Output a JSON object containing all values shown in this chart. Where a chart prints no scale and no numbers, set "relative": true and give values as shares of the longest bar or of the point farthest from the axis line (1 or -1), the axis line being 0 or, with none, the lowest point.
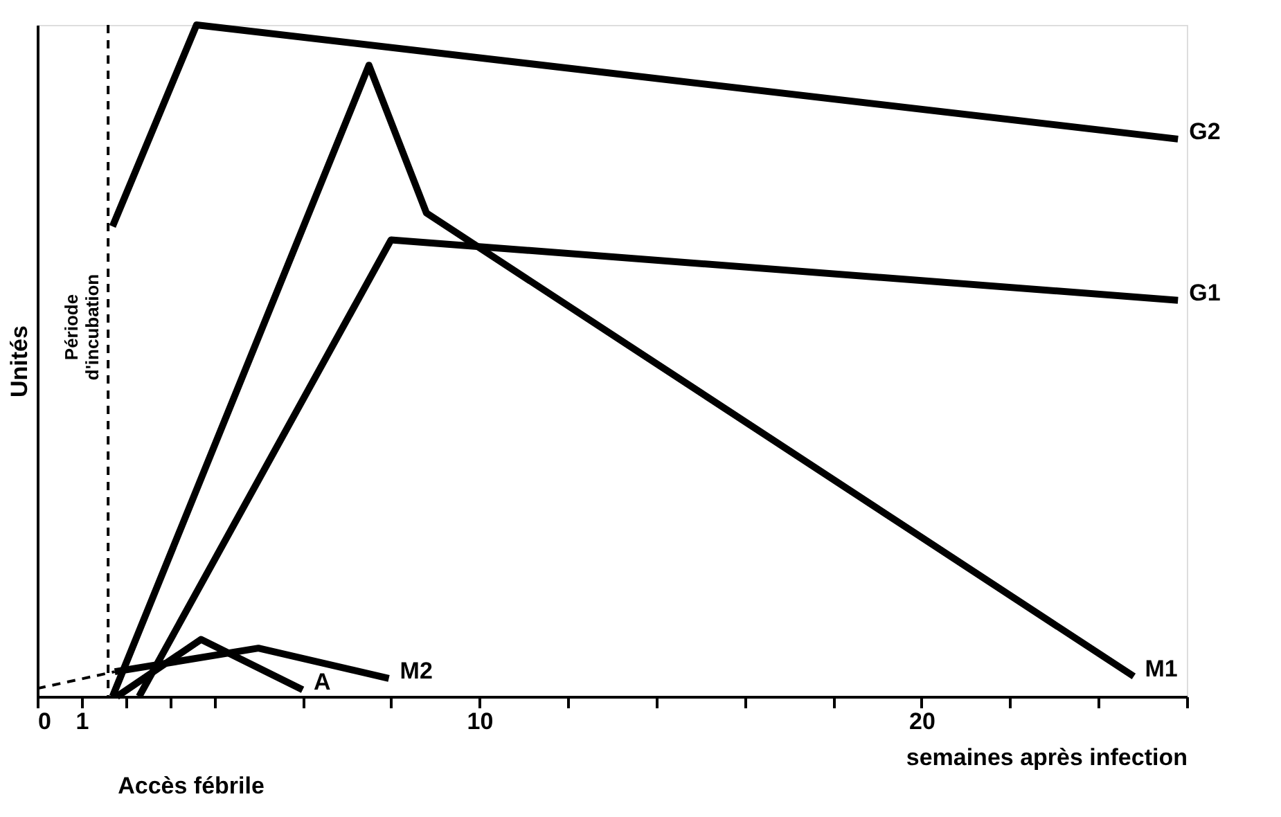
{
  "chart_data": {
    "type": "line",
    "xlabel": "semaines après infection",
    "ylabel": "Unités",
    "relative": true,
    "grid": false,
    "marker": "none",
    "xlim": [
      0,
      26
    ],
    "xticks": [
      0,
      1,
      {
        "value": 2,
        "label": null
      },
      {
        "value": 3,
        "label": null
      },
      {
        "value": 4,
        "label": null
      },
      {
        "value": 6,
        "label": null
      },
      {
        "value": 8,
        "label": null
      },
      10,
      {
        "value": 12,
        "label": null
      },
      {
        "value": 14,
        "label": null
      },
      {
        "value": 16,
        "label": null
      },
      {
        "value": 18,
        "label": null
      },
      20,
      {
        "value": 22,
        "label": null
      },
      {
        "value": 24,
        "label": null
      },
      {
        "value": 26,
        "label": null
      }
    ],
    "series": [
      {
        "name": "G2",
        "color": "#000000",
        "x": [
          1.7,
          3.6,
          25.8
        ],
        "values": [
          0.7,
          1.0,
          0.83
        ]
      },
      {
        "name": "G1",
        "color": "#000000",
        "x": [
          2.3,
          8.0,
          25.8
        ],
        "values": [
          0,
          0.68,
          0.59
        ]
      },
      {
        "name": "M1",
        "color": "#000000",
        "x": [
          1.7,
          7.5,
          8.8,
          24.8
        ],
        "values": [
          0,
          0.94,
          0.72,
          0.03
        ]
      },
      {
        "name": "A",
        "color": "#000000",
        "x": [
          1.8,
          3.7,
          6.0
        ],
        "values": [
          0,
          0.085,
          0.01
        ]
      },
      {
        "name": "M2",
        "color": "#000000",
        "x": [
          1.75,
          5.0,
          7.95
        ],
        "values": [
          0.037,
          0.072,
          0.027
        ]
      },
      {
        "color": "#000000",
        "line_style": "dashed",
        "x": [
          0,
          1.75
        ],
        "values": [
          0.012,
          0.037
        ]
      }
    ],
    "ref_lines": [
      {
        "axis": "x",
        "value": 1.6,
        "label": "Période d'incubation",
        "line_style": "dashed",
        "color": "#000000"
      }
    ],
    "annotations": [
      "Accès fébrile"
    ]
  }
}
